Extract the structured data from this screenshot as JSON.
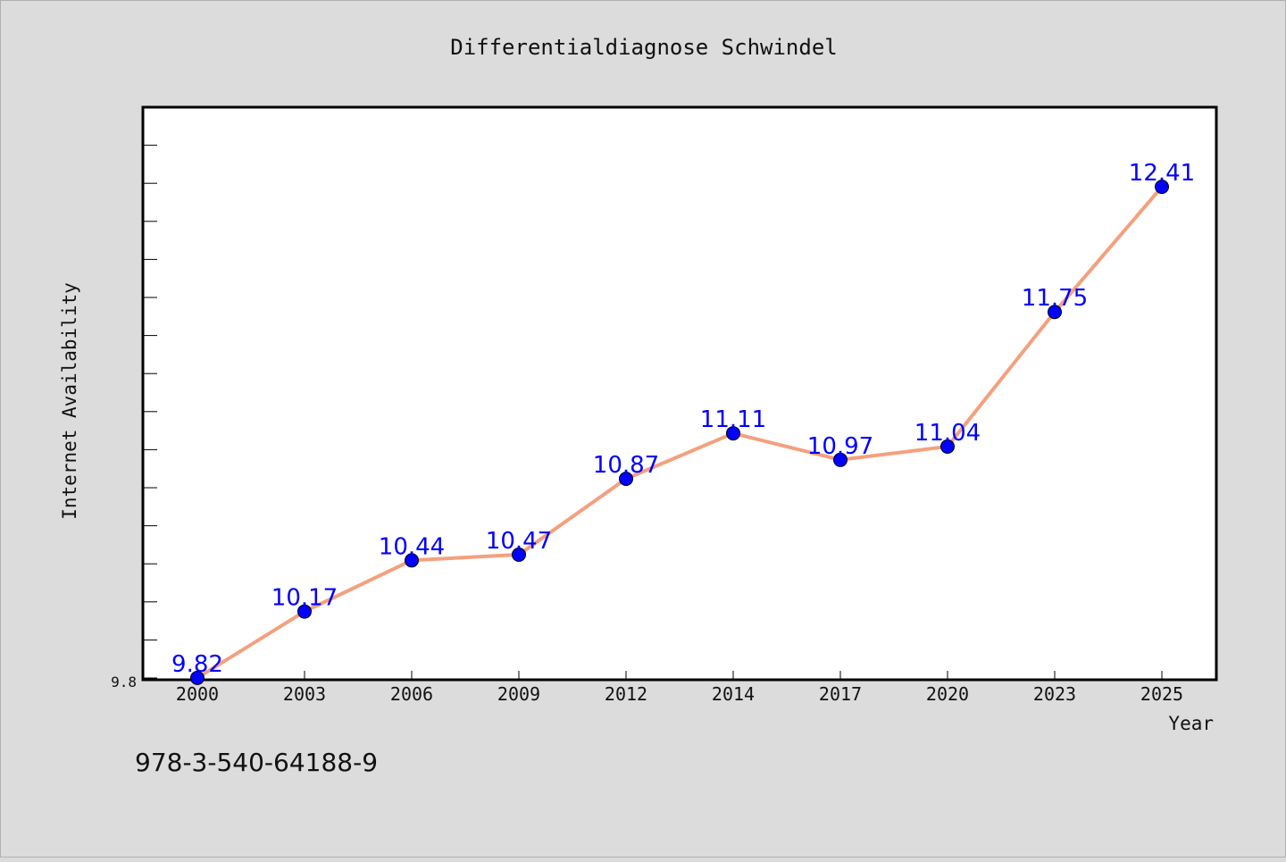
{
  "chart_data": {
    "type": "line",
    "title": "Differentialdiagnose Schwindel",
    "xlabel": "Year",
    "ylabel": "Internet Availability",
    "categories": [
      "2000",
      "2003",
      "2006",
      "2009",
      "2012",
      "2014",
      "2017",
      "2020",
      "2023",
      "2025"
    ],
    "series": [
      {
        "values": [
          9.82,
          10.17,
          10.44,
          10.47,
          10.87,
          11.11,
          10.97,
          11.04,
          11.75,
          12.41
        ],
        "data_labels": [
          "9.82",
          "10.17",
          "10.44",
          "10.47",
          "10.87",
          "11.11",
          "10.97",
          "11.04",
          "11.75",
          "12.41"
        ],
        "line_color": "#f4a07e",
        "marker_color": "#0000ff"
      }
    ],
    "ylim": [
      9.81,
      12.83
    ],
    "ytick_labels": [
      "9.8"
    ],
    "grid": false,
    "legend": "none",
    "colors": {
      "background": "#dcdcdc",
      "plot_background": "#ffffff",
      "line": "#f4a07e",
      "marker": "#0000ff",
      "data_label": "#0000ff"
    }
  },
  "footer": {
    "isbn": "978-3-540-64188-9"
  }
}
